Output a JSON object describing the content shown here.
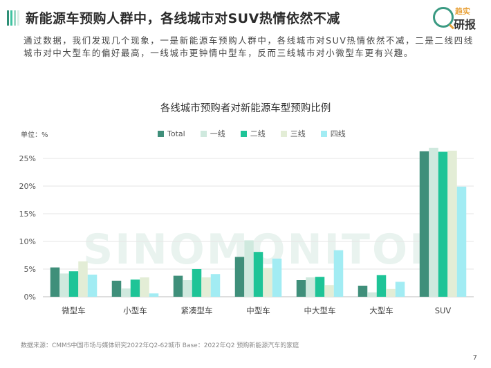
{
  "header": {
    "title": "新能源车预购人群中，各线城市对SUV热情依然不减",
    "stripe_colors": [
      "#2e8f76",
      "#3ec3a0",
      "#9ad8c5",
      "#d9eee6"
    ]
  },
  "logo": {
    "line1": "趋实",
    "line2": "研报"
  },
  "description": "通过数据，我们发现几个现象，一是新能源车预购人群中，各线城市对SUV热情依然不减，二是二线四线城市对中大型车的偏好最高，一线城市更钟情中型车，反而三线城市对小微型车更有兴趣。",
  "watermark": "SINOMONITOR",
  "chart_data": {
    "type": "bar",
    "title": "各线城市预购者对新能源车型预购比例",
    "unit_label": "单位：%",
    "categories": [
      "微型车",
      "小型车",
      "紧凑型车",
      "中型车",
      "中大型车",
      "大型车",
      "SUV"
    ],
    "yticks": [
      "0%",
      "5%",
      "10%",
      "15%",
      "20%",
      "25%"
    ],
    "ylim": [
      0,
      28
    ],
    "legend_position": "top",
    "series": [
      {
        "name": "Total",
        "color": "#3f8f7a",
        "values": [
          5.3,
          2.9,
          3.8,
          7.2,
          3.0,
          2.0,
          26.3
        ]
      },
      {
        "name": "一线",
        "color": "#cfe9de",
        "values": [
          4.2,
          1.5,
          3.0,
          10.2,
          3.5,
          0.8,
          26.9
        ]
      },
      {
        "name": "二线",
        "color": "#1ec497",
        "values": [
          4.6,
          3.1,
          5.0,
          8.1,
          3.6,
          3.9,
          26.2
        ]
      },
      {
        "name": "三线",
        "color": "#e3edd6",
        "values": [
          6.4,
          3.5,
          3.5,
          5.2,
          2.1,
          1.4,
          26.4
        ]
      },
      {
        "name": "四线",
        "color": "#a2ecf3",
        "values": [
          4.0,
          0.6,
          4.1,
          6.9,
          8.4,
          2.7,
          19.9
        ]
      }
    ],
    "grid": true
  },
  "footer": {
    "source": "数据来源：CMMS中国市场与媒体研究2022年Q2-62城市  Base：2022年Q2 预购新能源汽车的家庭",
    "page": "7"
  }
}
